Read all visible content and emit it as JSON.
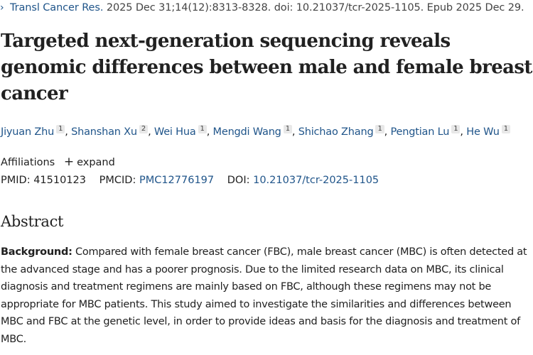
{
  "citation": {
    "chevron_icon": "›",
    "journal": "Transl Cancer Res.",
    "details": " 2025 Dec 31;14(12):8313-8328. doi: 10.21037/tcr-2025-1105. Epub 2025 Dec 29."
  },
  "title": "Targeted next-generation sequencing reveals genomic differences between male and female breast cancer",
  "authors": [
    {
      "name": "Jiyuan Zhu",
      "aff": "1"
    },
    {
      "name": "Shanshan Xu",
      "aff": "2"
    },
    {
      "name": "Wei Hua",
      "aff": "1"
    },
    {
      "name": "Mengdi Wang",
      "aff": "1"
    },
    {
      "name": "Shichao Zhang",
      "aff": "1"
    },
    {
      "name": "Pengtian Lu",
      "aff": "1"
    },
    {
      "name": "He Wu",
      "aff": "1"
    }
  ],
  "affiliations": {
    "label": "Affiliations",
    "expand_icon": "+",
    "expand_label": "expand"
  },
  "ids": {
    "pmid_label": "PMID:",
    "pmid": "41510123",
    "pmcid_label": "PMCID:",
    "pmcid": "PMC12776197",
    "doi_label": "DOI:",
    "doi": "10.21037/tcr-2025-1105"
  },
  "abstract": {
    "heading": "Abstract",
    "background_label": "Background:",
    "background_text": " Compared with female breast cancer (FBC), male breast cancer (MBC) is often detected at the advanced stage and has a poorer prognosis. Due to the limited research data on MBC, its clinical diagnosis and treatment regimens are mainly based on FBC, although these regimens may not be appropriate for MBC patients. This study aimed to investigate the similarities and differences between MBC and FBC at the genetic level, in order to provide ideas and basis for the diagnosis and treatment of MBC."
  },
  "colors": {
    "link": "#20558a",
    "text": "#212121"
  }
}
